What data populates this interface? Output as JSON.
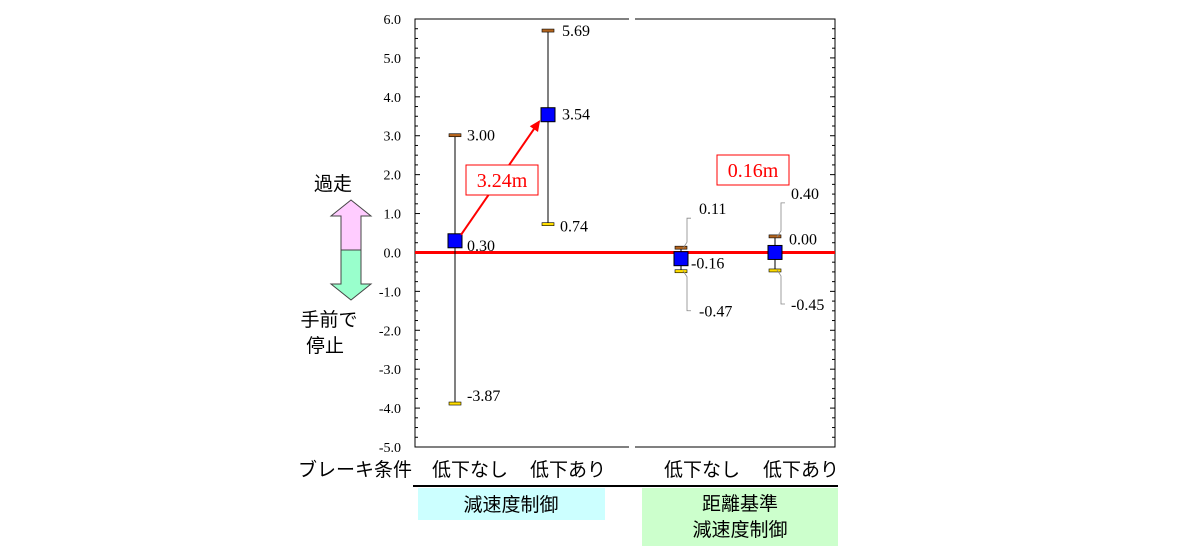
{
  "chart_data": {
    "type": "scatter",
    "title": "",
    "xlabel": "ブレーキ条件",
    "ylabel": "",
    "ylim": [
      -5.0,
      6.0
    ],
    "yticks": [
      "6.0",
      "5.0",
      "4.0",
      "3.0",
      "2.0",
      "1.0",
      "0.0",
      "-1.0",
      "-2.0",
      "-3.0",
      "-4.0",
      "-5.0"
    ],
    "categories": [
      "低下なし",
      "低下あり",
      "低下なし",
      "低下あり"
    ],
    "groups": [
      {
        "label": "減速度制御",
        "color": "#ccffff"
      },
      {
        "label_lines": [
          "距離基準",
          "減速度制御"
        ],
        "color": "#ccffcc"
      }
    ],
    "points": [
      {
        "category": "低下なし",
        "group": 0,
        "mean": 0.3,
        "max": 3.0,
        "min": -3.87,
        "mean_label": "0.30",
        "max_label": "3.00",
        "min_label": "-3.87"
      },
      {
        "category": "低下あり",
        "group": 0,
        "mean": 3.54,
        "max": 5.69,
        "min": 0.74,
        "mean_label": "3.54",
        "max_label": "5.69",
        "min_label": "0.74"
      },
      {
        "category": "低下なし",
        "group": 1,
        "mean": -0.16,
        "max": 0.11,
        "min": -0.47,
        "mean_label": "-0.16",
        "max_label": "0.11",
        "min_label": "-0.47"
      },
      {
        "category": "低下あり",
        "group": 1,
        "mean": 0.0,
        "max": 0.4,
        "min": -0.45,
        "mean_label": "0.00",
        "max_label": "0.40",
        "min_label": "-0.45"
      }
    ],
    "annotations": [
      {
        "text": "3.24m",
        "group": 0
      },
      {
        "text": "0.16m",
        "group": 1
      }
    ],
    "reference_line": {
      "y": 0.0,
      "color": "#ff0000"
    },
    "side_labels": {
      "overshoot": "過走",
      "stop_short_lines": [
        "手前で",
        "停止"
      ]
    },
    "colors": {
      "marker": "#0000ff",
      "max_cap": "#b5651d",
      "min_cap": "#ffdd00",
      "arrow_up": "#ffccff",
      "arrow_down": "#99ffcc"
    }
  }
}
